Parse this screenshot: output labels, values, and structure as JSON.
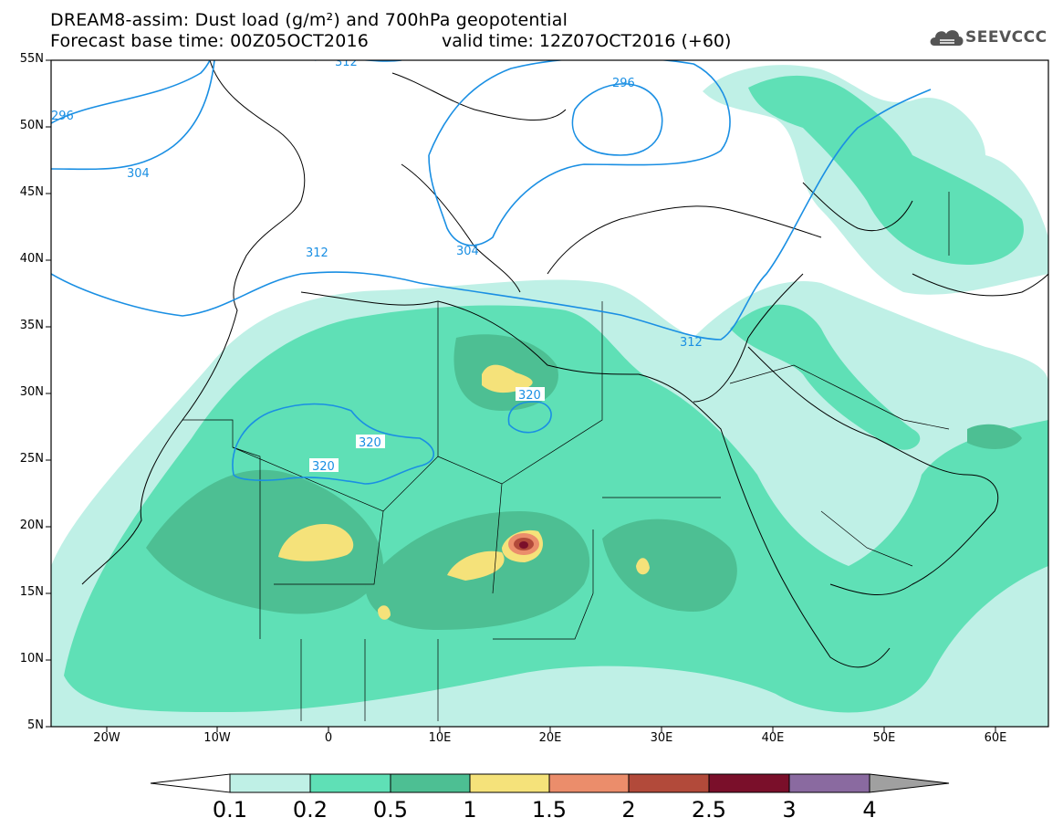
{
  "header": {
    "title_line1": "DREAM8-assim: Dust load (g/m²) and 700hPa geopotential",
    "title_line2": "Forecast base time: 00Z05OCT2016",
    "valid_time": "valid time: 12Z07OCT2016 (+60)",
    "logo_text": "SEEVCCC"
  },
  "map": {
    "lat_labels": [
      "55N",
      "50N",
      "45N",
      "40N",
      "35N",
      "30N",
      "25N",
      "20N",
      "15N",
      "10N",
      "5N"
    ],
    "lon_labels": [
      "20W",
      "10W",
      "0",
      "10E",
      "20E",
      "30E",
      "40E",
      "50E",
      "60E"
    ],
    "contour_labels": [
      "296",
      "296",
      "304",
      "304",
      "312",
      "312",
      "312",
      "320",
      "320",
      "320"
    ],
    "colors": {
      "land_border": "#000000",
      "contour": "#1a8fe3",
      "band_0_1": "#bff0e6",
      "band_0_2": "#5fe0b6",
      "band_0_5": "#4dbf93",
      "band_1": "#f5e27a",
      "band_1_5": "#eb8d6b",
      "band_2": "#b24a3a",
      "band_2_5": "#7a0f2a",
      "band_3": "#8a6aa0",
      "band_4": "#a0a0a0"
    }
  },
  "colorbar": {
    "labels": [
      "0.1",
      "0.2",
      "0.5",
      "1",
      "1.5",
      "2",
      "2.5",
      "3",
      "4"
    ],
    "colors": [
      "#bff0e6",
      "#5fe0b6",
      "#4dbf93",
      "#f5e27a",
      "#eb8d6b",
      "#b24a3a",
      "#7a0f2a",
      "#8a6aa0"
    ],
    "under_color": "#ffffff",
    "over_color": "#a0a0a0"
  }
}
